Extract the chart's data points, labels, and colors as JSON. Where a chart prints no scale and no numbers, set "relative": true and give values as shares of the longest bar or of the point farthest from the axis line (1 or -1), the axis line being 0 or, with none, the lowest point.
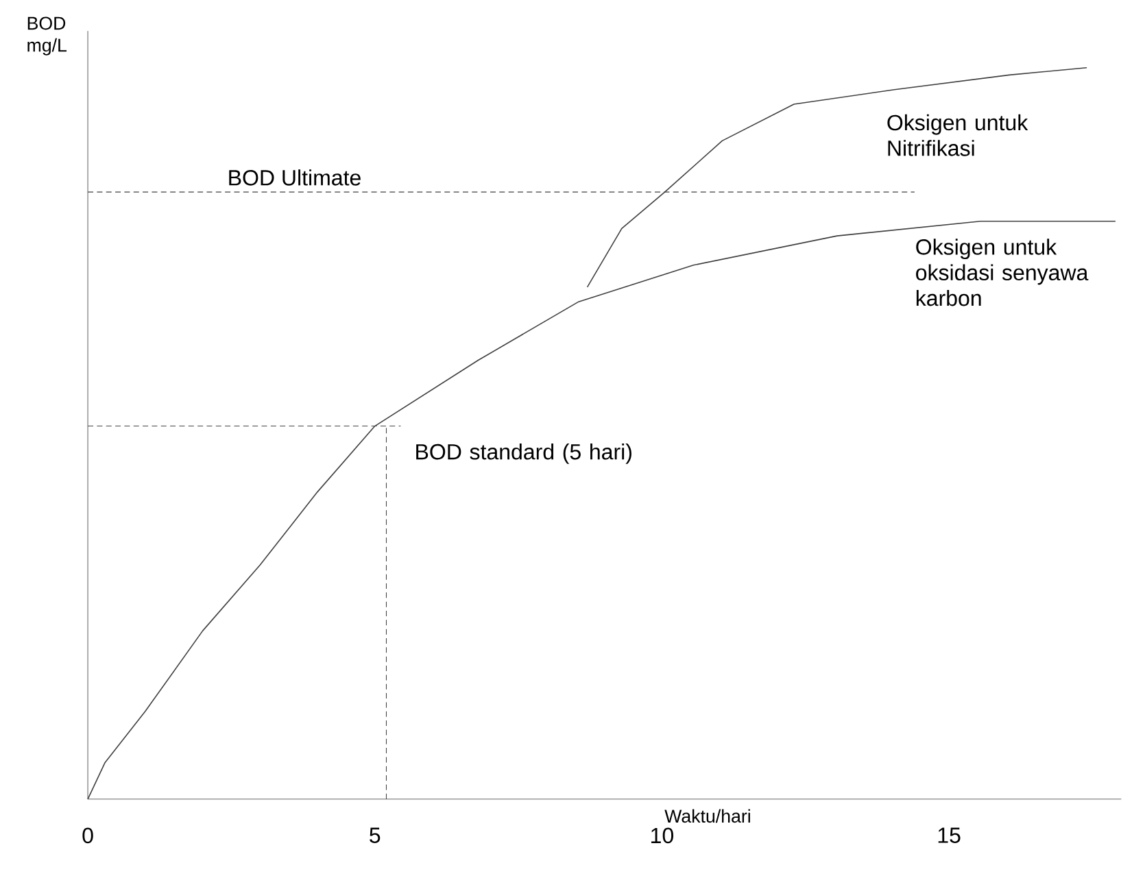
{
  "chart_data": {
    "type": "line",
    "relative": true,
    "xlabel": "Waktu/hari",
    "ylabel": "BOD mg/L",
    "xlim": [
      0,
      18
    ],
    "xticks": [
      0,
      5,
      10,
      15
    ],
    "grid": false,
    "marker": "none",
    "line_style": "solid",
    "series": [
      {
        "name": "Oksigen untuk oksidasi senyawa karbon",
        "color": "#404040",
        "x": [
          0,
          0.3,
          1,
          2,
          3,
          4,
          5,
          6.8,
          8.55,
          10.55,
          13.05,
          15.55,
          17.9
        ],
        "values": [
          0,
          0.05,
          0.12,
          0.23,
          0.32,
          0.42,
          0.51,
          0.6,
          0.68,
          0.73,
          0.77,
          0.79,
          0.79
        ]
      },
      {
        "name": "Oksigen untuk Nitrifikasi",
        "color": "#404040",
        "x": [
          8.7,
          9.3,
          10.05,
          11.05,
          12.3,
          14.05,
          16.05,
          17.4
        ],
        "values": [
          0.7,
          0.78,
          0.83,
          0.9,
          0.95,
          0.97,
          0.99,
          1.0
        ]
      }
    ],
    "ref_lines": [
      {
        "axis": "y",
        "value": 0.83,
        "label": "BOD Ultimate",
        "color": "#404040",
        "line_style": "dashed"
      },
      {
        "axis": "y",
        "value": 0.51,
        "label": "BOD standard (5 hari)",
        "color": "#404040",
        "line_style": "dashed"
      },
      {
        "axis": "x",
        "value": 5.2,
        "label": null,
        "color": "#404040",
        "line_style": "dashed"
      }
    ]
  }
}
